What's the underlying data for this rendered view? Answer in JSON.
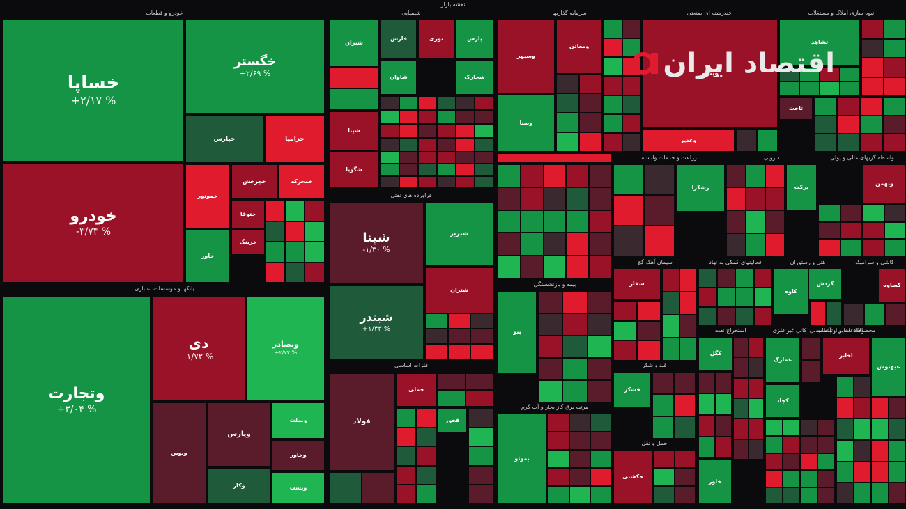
{
  "chart_data": {
    "type": "treemap",
    "title": "نقشه بازار",
    "sectors": [
      {
        "name": "خودرو و قطعات",
        "stocks": [
          {
            "symbol": "خساپا",
            "change": "+۲/۱۷ %",
            "status": "up"
          },
          {
            "symbol": "خودرو",
            "change": "-۳/۷۳ %",
            "status": "down"
          },
          {
            "symbol": "خگستر",
            "change": "+۲/۶۹ %",
            "status": "up"
          },
          {
            "symbol": "خپارس",
            "change": "",
            "status": "up-dark"
          },
          {
            "symbol": "خزامیا",
            "change": "",
            "status": "down-bright"
          },
          {
            "symbol": "خموتور",
            "change": "",
            "status": "down-bright"
          },
          {
            "symbol": "خچرخش",
            "change": "",
            "status": "down"
          },
          {
            "symbol": "خمحرکه",
            "change": "",
            "status": "down-bright"
          },
          {
            "symbol": "ختوقا",
            "change": "",
            "status": "down"
          },
          {
            "symbol": "خرینگ",
            "change": "",
            "status": "down"
          },
          {
            "symbol": "خاور",
            "change": "",
            "status": "up"
          }
        ]
      },
      {
        "name": "بانکها و موسسات اعتباری",
        "stocks": [
          {
            "symbol": "وتجارت",
            "change": "+۳/۰۴ %",
            "status": "up"
          },
          {
            "symbol": "دی",
            "change": "-۱/۷۲ %",
            "status": "down"
          },
          {
            "symbol": "وبصادر",
            "change": "+۲/۷۲ %",
            "status": "up-bright"
          },
          {
            "symbol": "ونوین",
            "change": "",
            "status": "down-dark"
          },
          {
            "symbol": "وپارس",
            "change": "",
            "status": "down-dark"
          },
          {
            "symbol": "وبملت",
            "change": "",
            "status": "up-bright"
          },
          {
            "symbol": "وخاور",
            "change": "",
            "status": "down-dark"
          },
          {
            "symbol": "وکار",
            "change": "",
            "status": "up-dark"
          },
          {
            "symbol": "وپست",
            "change": "",
            "status": "up-bright"
          }
        ]
      },
      {
        "name": "شیمیایی",
        "stocks": [
          {
            "symbol": "شیران",
            "change": "",
            "status": "up"
          },
          {
            "symbol": "فارس",
            "change": "",
            "status": "up-dark"
          },
          {
            "symbol": "نوری",
            "change": "",
            "status": "down"
          },
          {
            "symbol": "پارس",
            "change": "",
            "status": "up"
          },
          {
            "symbol": "شپنا",
            "change": "",
            "status": "down"
          },
          {
            "symbol": "شگویا",
            "change": "",
            "status": "down"
          },
          {
            "symbol": "شاوان",
            "change": "",
            "status": "up"
          },
          {
            "symbol": "شخارک",
            "change": "",
            "status": "up"
          }
        ]
      },
      {
        "name": "فراورده های نفتی",
        "stocks": [
          {
            "symbol": "شپنا",
            "change": "-۱/۳۰ %",
            "status": "down-dark"
          },
          {
            "symbol": "شبندر",
            "change": "+۱/۴۳ %",
            "status": "up-dark"
          },
          {
            "symbol": "شبریز",
            "change": "",
            "status": "up"
          },
          {
            "symbol": "شتران",
            "change": "",
            "status": "down"
          }
        ]
      },
      {
        "name": "فلزات اساسی",
        "stocks": [
          {
            "symbol": "فولاد",
            "change": "",
            "status": "down-dark"
          },
          {
            "symbol": "فملی",
            "change": "",
            "status": "down"
          },
          {
            "symbol": "فخوز",
            "change": "",
            "status": "up"
          }
        ]
      },
      {
        "name": "سرمایه گذاریها",
        "stocks": [
          {
            "symbol": "وسپهر",
            "change": "",
            "status": "down"
          },
          {
            "symbol": "ومعادن",
            "change": "",
            "status": "down"
          },
          {
            "symbol": "وصنا",
            "change": "",
            "status": "up"
          }
        ]
      },
      {
        "name": "چندرشته ای صنعتی",
        "stocks": [
          {
            "symbol": "وپترو",
            "change": "",
            "status": "down"
          },
          {
            "symbol": "وغدیر",
            "change": "",
            "status": "down-bright"
          }
        ]
      },
      {
        "name": "انبوه سازی املاک و مستغلات",
        "stocks": [
          {
            "symbol": "ثشاهد",
            "change": "",
            "status": "up"
          },
          {
            "symbol": "ثاخت",
            "change": "",
            "status": "down-dark"
          }
        ]
      },
      {
        "name": "محصولات غذایی و آشامیدنی",
        "stocks": [
          {
            "symbol": "غبهنوش",
            "change": "",
            "status": "up"
          },
          {
            "symbol": "غمارگ",
            "change": "",
            "status": "up"
          }
        ]
      },
      {
        "name": "زراعت و خدمات وابسته",
        "stocks": [
          {
            "symbol": "زشگزا",
            "change": "",
            "status": "up"
          }
        ]
      },
      {
        "name": "دارویی",
        "stocks": [
          {
            "symbol": "برکت",
            "change": "",
            "status": "up"
          }
        ]
      },
      {
        "name": "واسطه گریهای مالی و پولی",
        "stocks": [
          {
            "symbol": "وبهمن",
            "change": "",
            "status": "down"
          }
        ]
      },
      {
        "name": "بیمه و بازنشستگی",
        "stocks": [
          {
            "symbol": "بنو",
            "change": "",
            "status": "up"
          }
        ]
      },
      {
        "name": "مرتبه برق گاز بخار و آب گرم",
        "stocks": [
          {
            "symbol": "بموتو",
            "change": "",
            "status": "up"
          }
        ]
      },
      {
        "name": "سیمان آهک گچ",
        "stocks": [
          {
            "symbol": "سفار",
            "change": "",
            "status": "down"
          }
        ]
      },
      {
        "name": "فعالیتهای کمکی به نهاد",
        "stocks": [
          {
            "symbol": "کاوه",
            "change": "",
            "status": "up"
          }
        ]
      },
      {
        "name": "حمل و نقل",
        "stocks": [
          {
            "symbol": "حکشتی",
            "change": "",
            "status": "down"
          }
        ]
      },
      {
        "name": "قند و شکر",
        "stocks": [
          {
            "symbol": "قشکر",
            "change": "",
            "status": "up"
          }
        ]
      },
      {
        "name": "فنی و مهندسی",
        "stocks": [
          {
            "symbol": "خاور",
            "change": "",
            "status": "up"
          }
        ]
      },
      {
        "name": "کانی غیر فلزی",
        "stocks": [
          {
            "symbol": "کچاد",
            "change": "",
            "status": "up"
          }
        ]
      },
      {
        "name": "اطلاعات و ارتباطات",
        "stocks": [
          {
            "symbol": "اخابر",
            "change": "",
            "status": "down"
          }
        ]
      },
      {
        "name": "استخراج نفت",
        "stocks": [
          {
            "symbol": "کگل",
            "change": "",
            "status": "up"
          }
        ]
      },
      {
        "name": "کاشی و سرامیک",
        "stocks": [
          {
            "symbol": "کساوه",
            "change": "",
            "status": "down"
          }
        ]
      },
      {
        "name": "هتل و رستوران",
        "stocks": [
          {
            "symbol": "گردش",
            "change": "",
            "status": "up"
          }
        ]
      }
    ],
    "legend_colors": {
      "up-bright": "#1fb552",
      "up": "#169445",
      "up-dark": "#1f5a3b",
      "down-bright": "#e11b2e",
      "down": "#9a1227",
      "down-dark": "#5a1c2a",
      "neutral": "#3a2a30"
    }
  },
  "watermark": {
    "brand_text": "اقتصاد ایران"
  }
}
